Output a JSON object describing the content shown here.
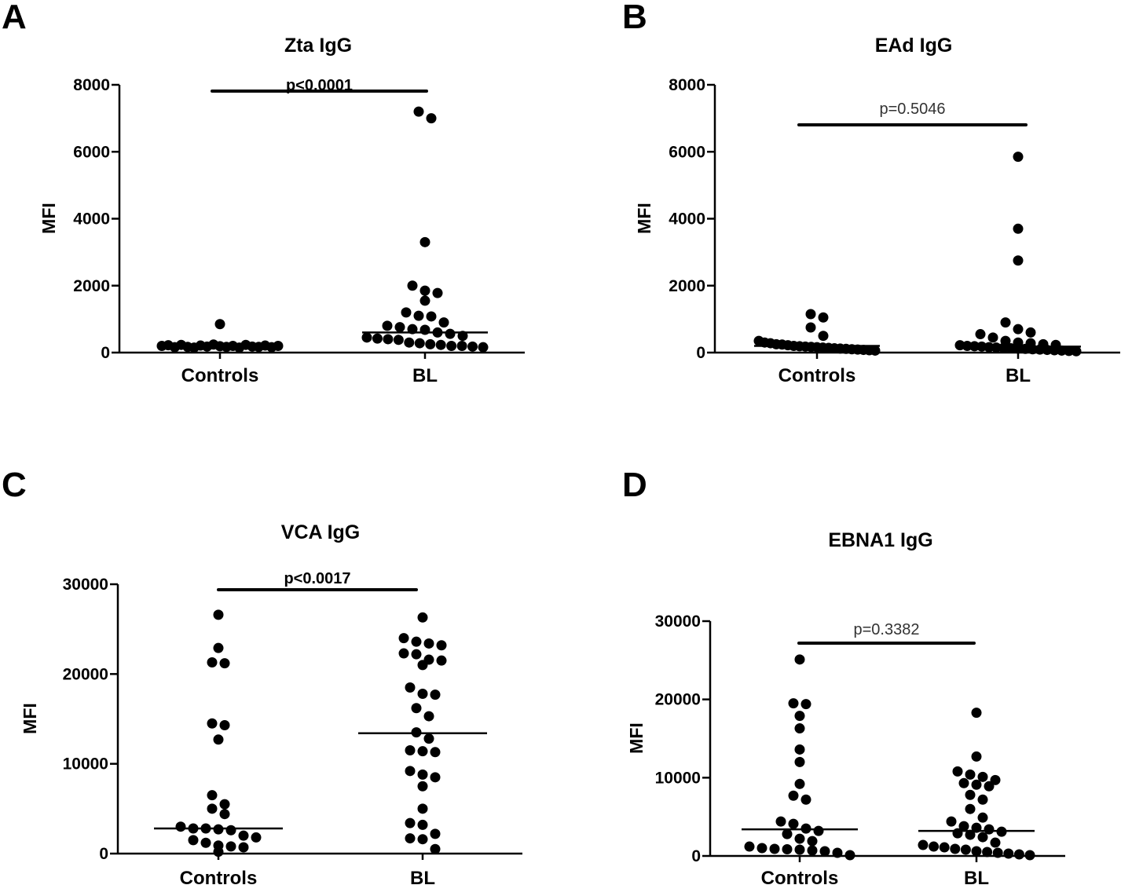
{
  "chart_data": [
    {
      "letter": "A",
      "type": "scatter",
      "title": "Zta IgG",
      "ylabel": "MFI",
      "ylim": [
        0,
        8000
      ],
      "yticks": [
        "0",
        "2000",
        "4000",
        "6000",
        "8000"
      ],
      "categories": [
        "Controls",
        "BL"
      ],
      "pvalue": "p<0.0001",
      "pvalue_bold": true,
      "medians": [
        180,
        600
      ],
      "series": [
        {
          "category": "Controls",
          "values": [
            850,
            200,
            220,
            160,
            230,
            170,
            150,
            210,
            180,
            240,
            190,
            170,
            200,
            150,
            230,
            180,
            170,
            210,
            160,
            200
          ]
        },
        {
          "category": "BL",
          "values": [
            7200,
            7000,
            3300,
            2000,
            1850,
            1780,
            1550,
            1200,
            1100,
            1080,
            900,
            800,
            760,
            700,
            680,
            600,
            560,
            500,
            450,
            420,
            400,
            380,
            300,
            280,
            250,
            230,
            200,
            200,
            180,
            160
          ]
        }
      ]
    },
    {
      "letter": "B",
      "type": "scatter",
      "title": "EAd IgG",
      "ylabel": "MFI",
      "ylim": [
        0,
        8000
      ],
      "yticks": [
        "0",
        "2000",
        "4000",
        "6000",
        "8000"
      ],
      "categories": [
        "Controls",
        "BL"
      ],
      "pvalue": "p=0.5046",
      "pvalue_bold": false,
      "medians": [
        200,
        180
      ],
      "series": [
        {
          "category": "Controls",
          "values": [
            1150,
            1050,
            750,
            500,
            350,
            300,
            280,
            250,
            240,
            220,
            200,
            190,
            180,
            170,
            160,
            150,
            140,
            130,
            120,
            110,
            100,
            90,
            80,
            70,
            60
          ]
        },
        {
          "category": "BL",
          "values": [
            5850,
            3700,
            2750,
            900,
            700,
            600,
            550,
            450,
            350,
            300,
            280,
            250,
            230,
            220,
            200,
            190,
            180,
            160,
            150,
            140,
            130,
            120,
            110,
            100,
            90,
            80,
            70,
            60,
            50,
            40
          ]
        }
      ]
    },
    {
      "letter": "C",
      "type": "scatter",
      "title": "VCA IgG",
      "ylabel": "MFI",
      "ylim": [
        0,
        30000
      ],
      "yticks": [
        "0",
        "10000",
        "20000",
        "30000"
      ],
      "categories": [
        "Controls",
        "BL"
      ],
      "pvalue": "p<0.0017",
      "pvalue_bold": true,
      "medians": [
        2800,
        13400
      ],
      "series": [
        {
          "category": "Controls",
          "values": [
            26600,
            22900,
            21300,
            21200,
            14500,
            14300,
            12700,
            6500,
            5500,
            5000,
            4400,
            3000,
            2800,
            2800,
            2700,
            2600,
            2000,
            1800,
            1500,
            1200,
            900,
            800,
            700,
            200
          ]
        },
        {
          "category": "BL",
          "values": [
            26300,
            24000,
            23600,
            23400,
            23200,
            22300,
            22200,
            21600,
            21500,
            21000,
            18500,
            17800,
            17700,
            16200,
            15300,
            13500,
            12800,
            11500,
            11400,
            11300,
            9200,
            8800,
            8500,
            7500,
            5000,
            3400,
            3200,
            2200,
            1700,
            1600,
            500
          ]
        }
      ]
    },
    {
      "letter": "D",
      "type": "scatter",
      "title": "EBNA1 IgG",
      "ylabel": "MFI",
      "ylim": [
        0,
        30000
      ],
      "yticks": [
        "0",
        "10000",
        "20000",
        "30000"
      ],
      "categories": [
        "Controls",
        "BL"
      ],
      "pvalue": "p=0.3382",
      "pvalue_bold": false,
      "medians": [
        3400,
        3200
      ],
      "series": [
        {
          "category": "Controls",
          "values": [
            25100,
            19500,
            19400,
            17900,
            16300,
            13600,
            12000,
            9200,
            7700,
            7200,
            4400,
            4100,
            3500,
            3200,
            2800,
            2200,
            1900,
            1200,
            1000,
            900,
            850,
            800,
            700,
            600,
            400,
            100
          ]
        },
        {
          "category": "BL",
          "values": [
            18300,
            12700,
            10800,
            10400,
            10100,
            9700,
            9300,
            9100,
            8900,
            7800,
            7200,
            6000,
            4900,
            4400,
            3800,
            3600,
            3400,
            3100,
            2900,
            2700,
            2400,
            1700,
            1400,
            1200,
            1100,
            900,
            800,
            600,
            500,
            400,
            300,
            200,
            100
          ]
        }
      ]
    }
  ]
}
